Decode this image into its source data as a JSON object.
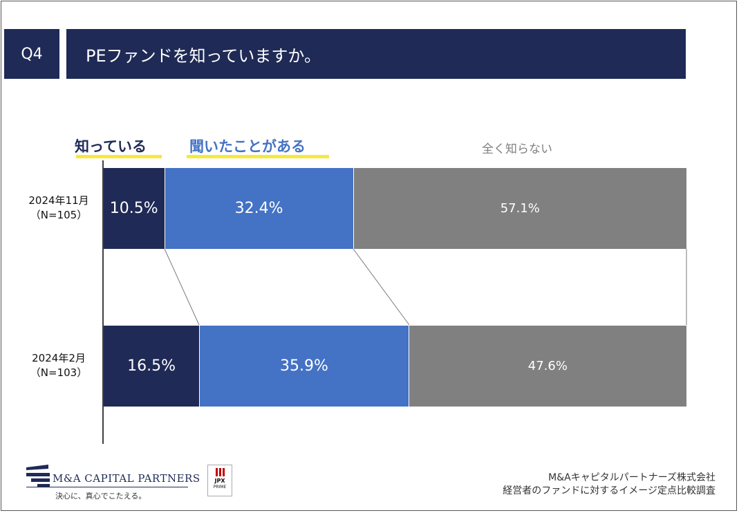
{
  "header": {
    "question_no": "Q4",
    "question": "PEファンドを知っていますか。"
  },
  "chart_data": {
    "type": "bar",
    "orientation": "horizontal",
    "stacked": true,
    "normalized_percent": true,
    "categories": [
      "2024年11月",
      "2024年2月"
    ],
    "category_notes": [
      "（N=105）",
      "（N=103）"
    ],
    "series": [
      {
        "name": "知っている",
        "values": [
          10.5,
          16.5
        ],
        "labels": [
          "10.5%",
          "16.5%"
        ],
        "color": "#1f2a56"
      },
      {
        "name": "聞いたことがある",
        "values": [
          32.4,
          35.9
        ],
        "labels": [
          "32.4%",
          "35.9%"
        ],
        "color": "#4472c4"
      },
      {
        "name": "全く知らない",
        "values": [
          57.1,
          47.6
        ],
        "labels": [
          "57.1%",
          "47.6%"
        ],
        "color": "#808080"
      }
    ],
    "xlim": [
      0,
      100
    ],
    "legend_position": "top",
    "highlight_color": "#f7e93c"
  },
  "footer": {
    "company_logo": "M&A CAPITAL PARTNERS",
    "slogan": "決心に、真心でこたえる。",
    "exchange_badge_line1": "JPX",
    "exchange_badge_line2": "PRIME",
    "source_line1": "M&Aキャピタルパートナーズ株式会社",
    "source_line2": "経営者のファンドに対するイメージ定点比較調査"
  }
}
